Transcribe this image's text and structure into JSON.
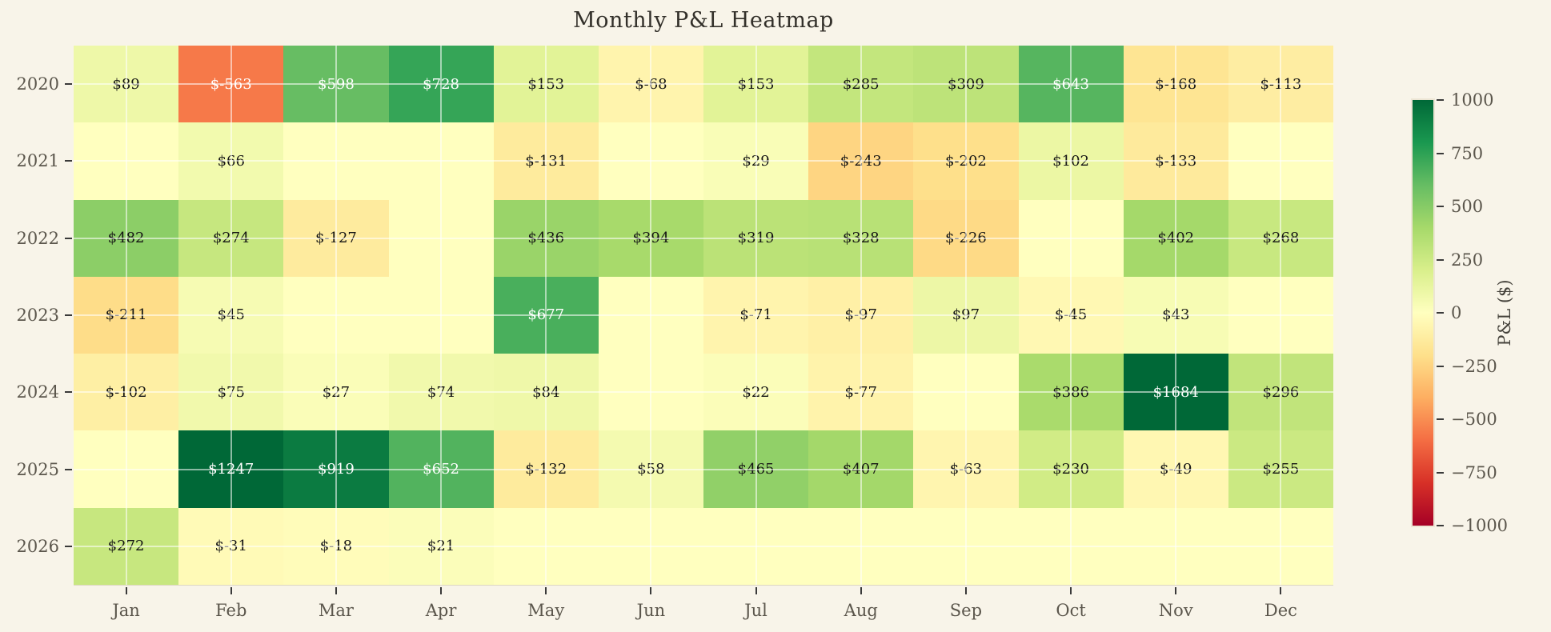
{
  "chart_data": {
    "type": "heatmap",
    "title": "Monthly P&L Heatmap",
    "rows": [
      "2020",
      "2021",
      "2022",
      "2023",
      "2024",
      "2025",
      "2026"
    ],
    "columns": [
      "Jan",
      "Feb",
      "Mar",
      "Apr",
      "May",
      "Jun",
      "Jul",
      "Aug",
      "Sep",
      "Oct",
      "Nov",
      "Dec"
    ],
    "values": [
      [
        89,
        -563,
        598,
        728,
        153,
        -68,
        153,
        285,
        309,
        643,
        -168,
        -113
      ],
      [
        null,
        66,
        null,
        null,
        -131,
        null,
        29,
        -243,
        -202,
        102,
        -133,
        null
      ],
      [
        482,
        274,
        -127,
        null,
        436,
        394,
        319,
        328,
        -226,
        null,
        402,
        268
      ],
      [
        -211,
        45,
        null,
        null,
        677,
        null,
        -71,
        -97,
        97,
        -45,
        43,
        null
      ],
      [
        -102,
        75,
        27,
        74,
        84,
        null,
        22,
        -77,
        null,
        386,
        1684,
        296
      ],
      [
        null,
        1247,
        919,
        652,
        -132,
        58,
        465,
        407,
        -63,
        230,
        -49,
        255
      ],
      [
        272,
        -31,
        -18,
        21,
        null,
        null,
        null,
        null,
        null,
        null,
        null,
        null
      ]
    ],
    "value_prefix": "$",
    "colorbar": {
      "label": "P&L ($)",
      "tick_labels": [
        "1000",
        "750",
        "500",
        "250",
        "0",
        "−250",
        "−500",
        "−750",
        "−1000"
      ],
      "tick_values": [
        1000,
        750,
        500,
        250,
        0,
        -250,
        -500,
        -750,
        -1000
      ],
      "vmin": -1000,
      "vmax": 1000,
      "colormap": "RdYlGn"
    },
    "colors": {
      "background": "#f8f4e9",
      "title_text": "#33302a",
      "tick_text": "#5b564c",
      "cell_text_dark": "#141414",
      "cell_text_light": "#ffffff",
      "gridline": "rgba(255,255,255,0.55)",
      "colormap_anchors": [
        "#a50026",
        "#d73027",
        "#f46d43",
        "#fdae61",
        "#fee08b",
        "#ffffbf",
        "#d9ef8b",
        "#a6d96a",
        "#66bd63",
        "#1a9850",
        "#006837"
      ]
    },
    "grid_on": true,
    "legend_position": "right-colorbar"
  }
}
